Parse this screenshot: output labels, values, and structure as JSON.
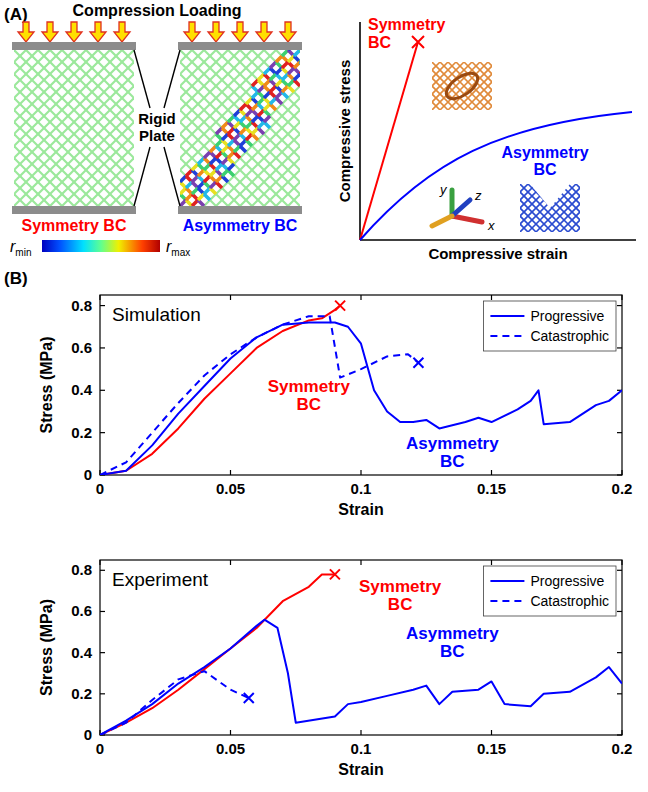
{
  "panels": [
    "(A)",
    "(B)"
  ],
  "diagram": {
    "loading_label": "Compression Loading",
    "plate_label": "Rigid Plate",
    "labels": [
      {
        "text": "Symmetry BC",
        "color": "#ff0000"
      },
      {
        "text": "Asymmetry BC",
        "color": "#0000ff"
      }
    ],
    "colorbar": {
      "min": "r",
      "min_sub": "min",
      "max": "r",
      "max_sub": "max"
    },
    "schematic": {
      "x_label": "Compressive strain",
      "y_label": "Compressive stress",
      "curves": [
        {
          "text": "Symmetry BC",
          "color": "#ff0000"
        },
        {
          "text": "Asymmetry BC",
          "color": "#0000ff"
        }
      ],
      "axis_labels": [
        "x",
        "y",
        "z"
      ]
    }
  },
  "chart_data": [
    {
      "type": "line",
      "title": "Simulation",
      "x_label": "Strain",
      "y_label": "Stress (MPa)",
      "xlim": [
        0,
        0.2
      ],
      "ylim": [
        0,
        0.85
      ],
      "xticks": [
        0,
        0.05,
        0.1,
        0.15,
        0.2
      ],
      "yticks": [
        0,
        0.2,
        0.4,
        0.6,
        0.8
      ],
      "legend": "upper right",
      "series": [
        {
          "color": "#ff0000",
          "line_style": "solid",
          "marker": "x",
          "x": [
            0,
            0.01,
            0.02,
            0.03,
            0.04,
            0.05,
            0.06,
            0.07,
            0.08,
            0.085,
            0.09,
            0.092
          ],
          "values": [
            0,
            0.02,
            0.1,
            0.22,
            0.36,
            0.48,
            0.6,
            0.68,
            0.73,
            0.74,
            0.78,
            0.8
          ]
        },
        {
          "name": "Progressive",
          "color": "#0000ff",
          "line_style": "solid",
          "marker": "none",
          "x": [
            0,
            0.01,
            0.02,
            0.03,
            0.04,
            0.05,
            0.06,
            0.07,
            0.08,
            0.09,
            0.095,
            0.1,
            0.105,
            0.11,
            0.115,
            0.12,
            0.125,
            0.13,
            0.14,
            0.145,
            0.15,
            0.16,
            0.165,
            0.168,
            0.17,
            0.18,
            0.19,
            0.195,
            0.2
          ],
          "values": [
            0,
            0.02,
            0.14,
            0.29,
            0.42,
            0.55,
            0.65,
            0.71,
            0.72,
            0.72,
            0.7,
            0.62,
            0.4,
            0.3,
            0.25,
            0.25,
            0.26,
            0.22,
            0.25,
            0.27,
            0.25,
            0.31,
            0.35,
            0.4,
            0.24,
            0.25,
            0.33,
            0.35,
            0.4
          ]
        },
        {
          "name": "Catastrophic",
          "color": "#0000ff",
          "line_style": "dashed",
          "marker": "x",
          "x": [
            0,
            0.01,
            0.02,
            0.03,
            0.04,
            0.05,
            0.06,
            0.07,
            0.08,
            0.088,
            0.092,
            0.1,
            0.11,
            0.118,
            0.122
          ],
          "values": [
            0,
            0.06,
            0.2,
            0.34,
            0.47,
            0.57,
            0.65,
            0.71,
            0.75,
            0.75,
            0.46,
            0.5,
            0.56,
            0.57,
            0.53
          ]
        }
      ],
      "annotations": [
        {
          "text": "Symmetry BC",
          "color": "#ff0000",
          "x": 0.08,
          "y": 0.38
        },
        {
          "text": "Asymmetry BC",
          "color": "#0000ff",
          "x": 0.135,
          "y": 0.11
        }
      ]
    },
    {
      "type": "line",
      "title": "Experiment",
      "x_label": "Strain",
      "y_label": "Stress (MPa)",
      "xlim": [
        0,
        0.2
      ],
      "ylim": [
        0,
        0.85
      ],
      "xticks": [
        0,
        0.05,
        0.1,
        0.15,
        0.2
      ],
      "yticks": [
        0,
        0.2,
        0.4,
        0.6,
        0.8
      ],
      "legend": "upper right",
      "series": [
        {
          "color": "#ff0000",
          "line_style": "solid",
          "marker": "x",
          "x": [
            0,
            0.01,
            0.02,
            0.03,
            0.04,
            0.05,
            0.06,
            0.07,
            0.08,
            0.085,
            0.09
          ],
          "values": [
            0,
            0.06,
            0.13,
            0.22,
            0.32,
            0.42,
            0.52,
            0.65,
            0.72,
            0.78,
            0.78
          ]
        },
        {
          "name": "Progressive",
          "color": "#0000ff",
          "line_style": "solid",
          "marker": "none",
          "x": [
            0,
            0.01,
            0.02,
            0.03,
            0.04,
            0.05,
            0.06,
            0.063,
            0.068,
            0.072,
            0.075,
            0.09,
            0.095,
            0.1,
            0.11,
            0.12,
            0.125,
            0.13,
            0.135,
            0.145,
            0.15,
            0.155,
            0.165,
            0.17,
            0.18,
            0.19,
            0.195,
            0.2
          ],
          "values": [
            0,
            0.07,
            0.15,
            0.25,
            0.33,
            0.42,
            0.53,
            0.56,
            0.52,
            0.3,
            0.06,
            0.09,
            0.15,
            0.16,
            0.19,
            0.22,
            0.24,
            0.15,
            0.21,
            0.22,
            0.26,
            0.15,
            0.14,
            0.2,
            0.21,
            0.28,
            0.33,
            0.25
          ]
        },
        {
          "name": "Catastrophic",
          "color": "#0000ff",
          "line_style": "dashed",
          "marker": "x",
          "x": [
            0,
            0.01,
            0.02,
            0.03,
            0.04,
            0.05,
            0.057
          ],
          "values": [
            0,
            0.06,
            0.17,
            0.27,
            0.31,
            0.22,
            0.18
          ]
        }
      ],
      "annotations": [
        {
          "text": "Symmetry BC",
          "color": "#ff0000",
          "x": 0.115,
          "y": 0.68
        },
        {
          "text": "Asymmetry BC",
          "color": "#0000ff",
          "x": 0.135,
          "y": 0.45
        }
      ]
    }
  ]
}
